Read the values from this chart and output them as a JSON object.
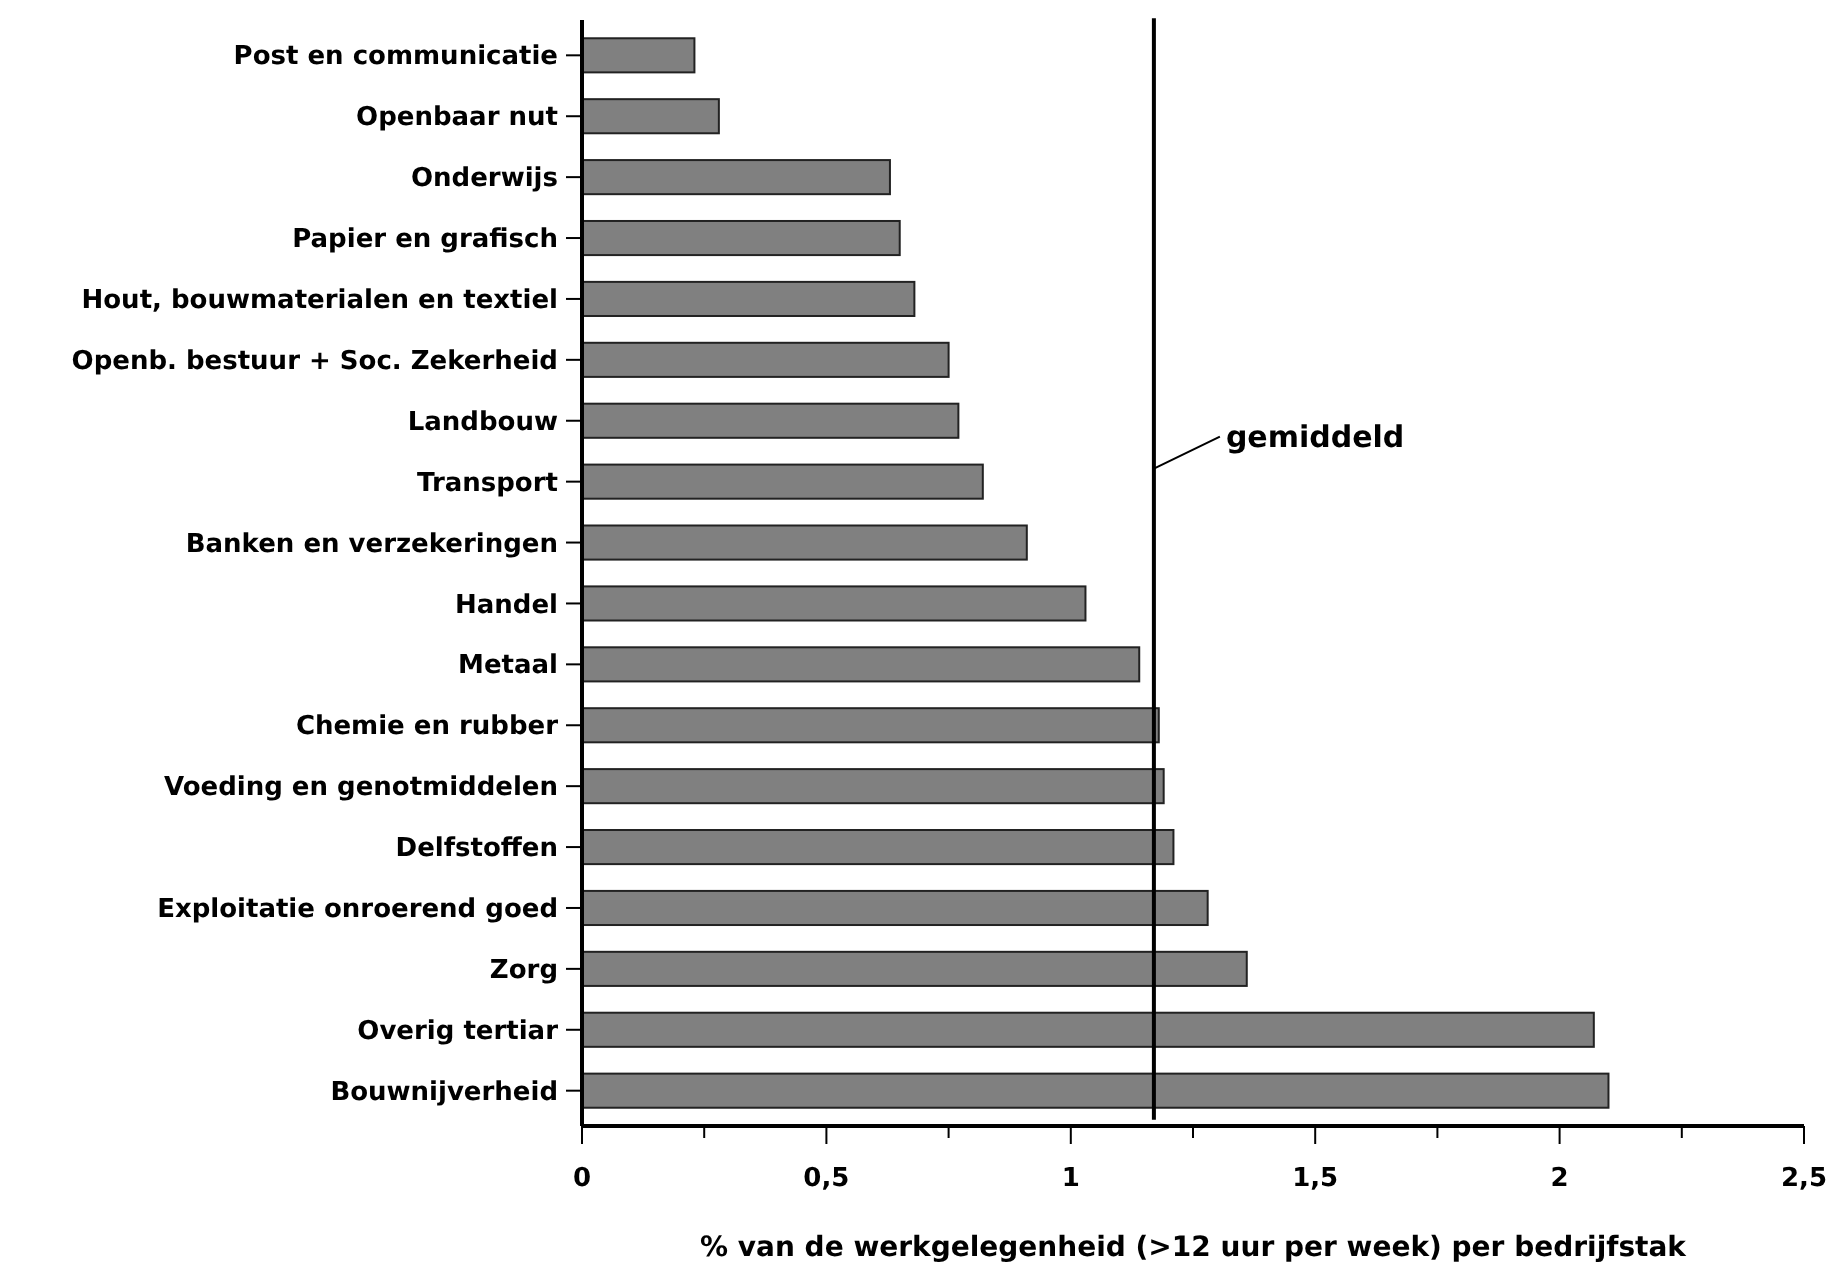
{
  "chart_data": {
    "type": "bar",
    "orientation": "horizontal",
    "categories": [
      "Post en communicatie",
      "Openbaar nut",
      "Onderwijs",
      "Papier en grafisch",
      "Hout, bouwmaterialen en textiel",
      "Openb. bestuur + Soc. Zekerheid",
      "Landbouw",
      "Transport",
      "Banken en verzekeringen",
      "Handel",
      "Metaal",
      "Chemie en rubber",
      "Voeding en genotmiddelen",
      "Delfstoffen",
      "Exploitatie onroerend goed",
      "Zorg",
      "Overig tertiar",
      "Bouwnijverheid"
    ],
    "values": [
      0.23,
      0.28,
      0.63,
      0.65,
      0.68,
      0.75,
      0.77,
      0.82,
      0.91,
      1.03,
      1.14,
      1.18,
      1.19,
      1.21,
      1.28,
      1.36,
      2.07,
      2.1
    ],
    "color": "#808080",
    "xlabel": "% van de werkgelegenheid (>12 uur per week) per bedrijfstak",
    "xlim": [
      0,
      2.5
    ],
    "xticks": [
      0,
      {
        "value": 0.25,
        "label": null
      },
      {
        "value": 0.5,
        "label": "0,5"
      },
      {
        "value": 0.75,
        "label": null
      },
      1,
      {
        "value": 1.25,
        "label": null
      },
      {
        "value": 1.5,
        "label": "1,5"
      },
      {
        "value": 1.75,
        "label": null
      },
      2,
      {
        "value": 2.25,
        "label": null
      },
      {
        "value": 2.5,
        "label": "2,5"
      }
    ],
    "ref_lines": [
      {
        "axis": "x",
        "value": 1.17,
        "label": "gemiddeld",
        "color": "#000000"
      }
    ],
    "grid": false
  }
}
